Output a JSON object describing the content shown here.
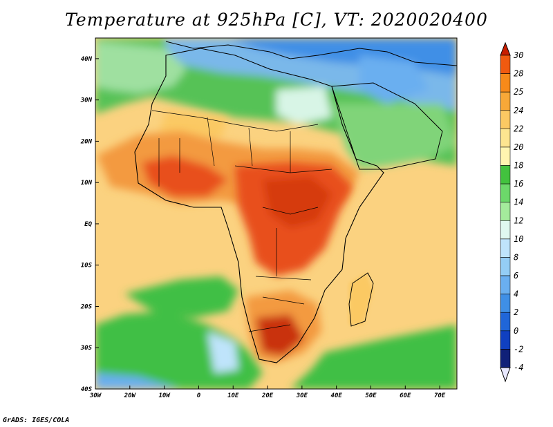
{
  "title": "Temperature at 925hPa [C], VT: 2020020400",
  "credit": "GrADS: IGES/COLA",
  "map": {
    "lon_range": [
      -30,
      75
    ],
    "lat_range": [
      -40,
      45
    ],
    "lon_ticks": [
      {
        "value": -30,
        "label": "30W"
      },
      {
        "value": -20,
        "label": "20W"
      },
      {
        "value": -10,
        "label": "10W"
      },
      {
        "value": 0,
        "label": "0"
      },
      {
        "value": 10,
        "label": "10E"
      },
      {
        "value": 20,
        "label": "20E"
      },
      {
        "value": 30,
        "label": "30E"
      },
      {
        "value": 40,
        "label": "40E"
      },
      {
        "value": 50,
        "label": "50E"
      },
      {
        "value": 60,
        "label": "60E"
      },
      {
        "value": 70,
        "label": "70E"
      }
    ],
    "lat_ticks": [
      {
        "value": 40,
        "label": "40N"
      },
      {
        "value": 30,
        "label": "30N"
      },
      {
        "value": 20,
        "label": "20N"
      },
      {
        "value": 10,
        "label": "10N"
      },
      {
        "value": 0,
        "label": "EQ"
      },
      {
        "value": -10,
        "label": "10S"
      },
      {
        "value": -20,
        "label": "20S"
      },
      {
        "value": -30,
        "label": "30S"
      },
      {
        "value": -40,
        "label": "40S"
      }
    ]
  },
  "colorbar": {
    "labels": [
      "30",
      "28",
      "25",
      "24",
      "22",
      "20",
      "18",
      "16",
      "14",
      "12",
      "10",
      "8",
      "6",
      "4",
      "2",
      "0",
      "-2",
      "-4"
    ],
    "colors": [
      "#e03000",
      "#f05a10",
      "#f78a1a",
      "#f8a838",
      "#fbc963",
      "#fde590",
      "#fff5b0",
      "#42c23e",
      "#6cd86a",
      "#a4eb9c",
      "#e0f8f0",
      "#bfe4fb",
      "#94cdf5",
      "#6aaff0",
      "#3f8fe6",
      "#2066d8",
      "#1040c0",
      "#102078"
    ],
    "top_color": "#c81e00",
    "bottom_color": "#e8e8ff"
  },
  "regions": {
    "ocean_base": "#fbd280",
    "sahara": "#56c256",
    "west_africa": "#f39a40",
    "central_africa": "#e8501e",
    "south_africa": "#e04a1e",
    "mediterranean": "#7ab8ea",
    "southern_ocean": "#3fbf44",
    "arabia": "#80d479"
  }
}
